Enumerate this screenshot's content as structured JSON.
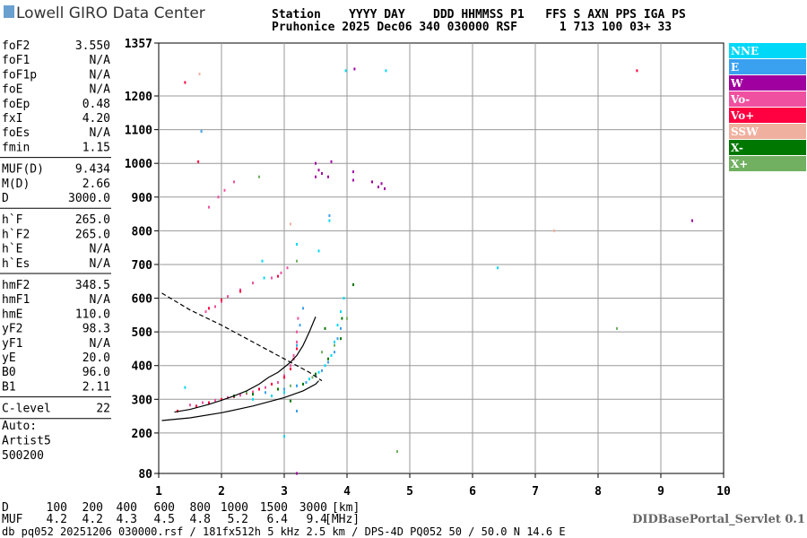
{
  "header": {
    "logo": "Lowell GIRO Data Center",
    "row1": "Station    YYYY DAY    DDD HHMMSS P1   FFS S AXN PPS IGA PS",
    "row2": "Pruhonice 2025 Dec06 340 030000 RSF      1 713 100 03+ 33"
  },
  "parameters": [
    [
      [
        "foF2",
        "3.550"
      ],
      [
        "foF1",
        "N/A"
      ],
      [
        "foF1p",
        "N/A"
      ],
      [
        "foE",
        "N/A"
      ],
      [
        "foEp",
        "0.48"
      ],
      [
        "fxI",
        "4.20"
      ],
      [
        "foEs",
        "N/A"
      ],
      [
        "fmin",
        "1.15"
      ]
    ],
    [
      [
        "MUF(D)",
        "9.434"
      ],
      [
        "M(D)",
        "2.66"
      ],
      [
        "D",
        "3000.0"
      ]
    ],
    [
      [
        "h`F",
        "265.0"
      ],
      [
        "h`F2",
        "265.0"
      ],
      [
        "h`E",
        "N/A"
      ],
      [
        "h`Es",
        "N/A"
      ]
    ],
    [
      [
        "hmF2",
        "348.5"
      ],
      [
        "hmF1",
        "N/A"
      ],
      [
        "hmE",
        "110.0"
      ],
      [
        "yF2",
        "98.3"
      ],
      [
        "yF1",
        "N/A"
      ],
      [
        "yE",
        "20.0"
      ],
      [
        "B0",
        "96.0"
      ],
      [
        "B1",
        "2.11"
      ]
    ],
    [
      [
        "C-level",
        "22"
      ]
    ]
  ],
  "auto": [
    "Auto:",
    "Artist5",
    "500200"
  ],
  "footer": {
    "d_label": "D",
    "d_values": [
      "100",
      "200",
      "400",
      "600",
      "800",
      "1000",
      "1500",
      "3000"
    ],
    "d_unit": "[km]",
    "muf_label": "MUF",
    "muf_values": [
      "4.2",
      "4.2",
      "4.3",
      "4.5",
      "4.8",
      "5.2",
      "6.4",
      "9.4"
    ],
    "muf_unit": "[MHz]",
    "servlet": "DIDBasePortal_Servlet 0.1",
    "file": "db pq052 20251206 030000.rsf / 181fx512h 5 kHz 2.5 km / DPS-4D PQ052 50 / 50.0 N 14.6 E"
  },
  "chart_data": {
    "type": "scatter",
    "xlim": [
      1,
      10
    ],
    "xticks": [
      1,
      2,
      3,
      4,
      5,
      6,
      7,
      8,
      9,
      10
    ],
    "ylim": [
      80,
      1357
    ],
    "yticks": [
      80,
      200,
      300,
      400,
      500,
      600,
      700,
      800,
      900,
      1000,
      1100,
      1200,
      1357
    ],
    "grid": true,
    "series": [
      {
        "name": "NNE",
        "color": "#00d8f8",
        "x": [
          2.5,
          2.8,
          3.0,
          3.2,
          3.4,
          3.55,
          3.65,
          3.75,
          3.8,
          3.85,
          3.9,
          3.95,
          3.2,
          3.55,
          3.72,
          1.42,
          2.65,
          4.62,
          3.98,
          2.68,
          3.0,
          6.4
        ],
        "values": [
          300,
          310,
          320,
          340,
          360,
          380,
          400,
          430,
          470,
          520,
          560,
          600,
          760,
          740,
          830,
          335,
          710,
          1275,
          1275,
          660,
          190,
          690
        ]
      },
      {
        "name": "E",
        "color": "#3aa0f0",
        "x": [
          2.7,
          3.0,
          3.2,
          3.35,
          3.5,
          3.6,
          3.7,
          3.8,
          3.85,
          3.9,
          3.2,
          3.25,
          3.3,
          3.72,
          1.68,
          3.2
        ],
        "values": [
          320,
          330,
          340,
          350,
          370,
          385,
          410,
          440,
          480,
          510,
          460,
          520,
          570,
          845,
          1095,
          265
        ]
      },
      {
        "name": "W",
        "color": "#a000a0",
        "x": [
          3.5,
          3.55,
          3.6,
          3.7,
          3.75,
          4.1,
          4.1,
          4.4,
          4.5,
          4.55,
          4.6,
          4.12,
          9.5,
          3.5,
          3.2
        ],
        "values": [
          1000,
          980,
          970,
          960,
          1005,
          975,
          950,
          945,
          930,
          940,
          925,
          1280,
          830,
          960,
          80
        ]
      },
      {
        "name": "Vo-",
        "color": "#f050a0",
        "x": [
          1.5,
          1.7,
          1.9,
          2.1,
          2.3,
          2.5,
          2.7,
          2.9,
          3.0,
          3.1,
          3.15,
          3.2,
          3.2,
          3.22,
          1.75,
          1.9,
          2.0,
          2.1,
          2.3,
          2.5,
          2.8,
          2.95,
          3.05,
          1.8,
          1.95,
          2.05,
          2.2
        ],
        "values": [
          283,
          290,
          297,
          305,
          312,
          322,
          335,
          350,
          370,
          400,
          430,
          470,
          500,
          540,
          560,
          575,
          590,
          605,
          625,
          645,
          660,
          675,
          690,
          870,
          900,
          920,
          945
        ]
      },
      {
        "name": "Vo+",
        "color": "#ff0040",
        "x": [
          1.3,
          1.6,
          1.8,
          2.0,
          2.2,
          2.4,
          2.6,
          2.8,
          3.0,
          3.1,
          3.15,
          3.2,
          1.8,
          2.0,
          2.3,
          2.9,
          1.42,
          8.62,
          1.63
        ],
        "values": [
          265,
          280,
          290,
          300,
          308,
          318,
          330,
          345,
          365,
          390,
          420,
          450,
          570,
          595,
          620,
          665,
          1240,
          1275,
          1005
        ]
      },
      {
        "name": "SSW",
        "color": "#f0b0a0",
        "x": [
          1.65,
          3.1,
          7.3
        ],
        "values": [
          1265,
          820,
          800
        ]
      },
      {
        "name": "X-",
        "color": "#007800",
        "x": [
          2.2,
          2.5,
          2.9,
          3.3,
          3.5,
          3.7,
          3.9,
          3.92,
          4.1,
          3.1,
          3.65
        ],
        "values": [
          310,
          315,
          330,
          345,
          375,
          420,
          480,
          540,
          640,
          295,
          510
        ]
      },
      {
        "name": "X+",
        "color": "#70b060",
        "x": [
          2.4,
          3.1,
          3.45,
          3.6,
          3.8,
          4.0,
          3.2,
          2.6,
          8.3,
          4.8
        ],
        "values": [
          320,
          340,
          365,
          440,
          460,
          540,
          710,
          960,
          510,
          145
        ]
      }
    ],
    "lines": [
      {
        "style": "solid",
        "x": [
          1.25,
          1.5,
          1.8,
          2.0,
          2.2,
          2.4,
          2.6,
          2.75,
          2.9,
          3.0,
          3.1,
          3.2,
          3.3,
          3.4,
          3.5
        ],
        "values": [
          262,
          270,
          285,
          297,
          310,
          325,
          345,
          365,
          380,
          395,
          410,
          430,
          460,
          500,
          545
        ]
      },
      {
        "style": "solid",
        "x": [
          1.05,
          1.5,
          2.0,
          2.5,
          3.0,
          3.3,
          3.5,
          3.55
        ],
        "values": [
          237,
          245,
          260,
          280,
          305,
          325,
          345,
          355
        ]
      },
      {
        "style": "dashed",
        "x": [
          1.05,
          1.5,
          2.0,
          2.5,
          3.0,
          3.4,
          3.6
        ],
        "values": [
          615,
          565,
          520,
          470,
          420,
          380,
          355
        ]
      }
    ]
  }
}
